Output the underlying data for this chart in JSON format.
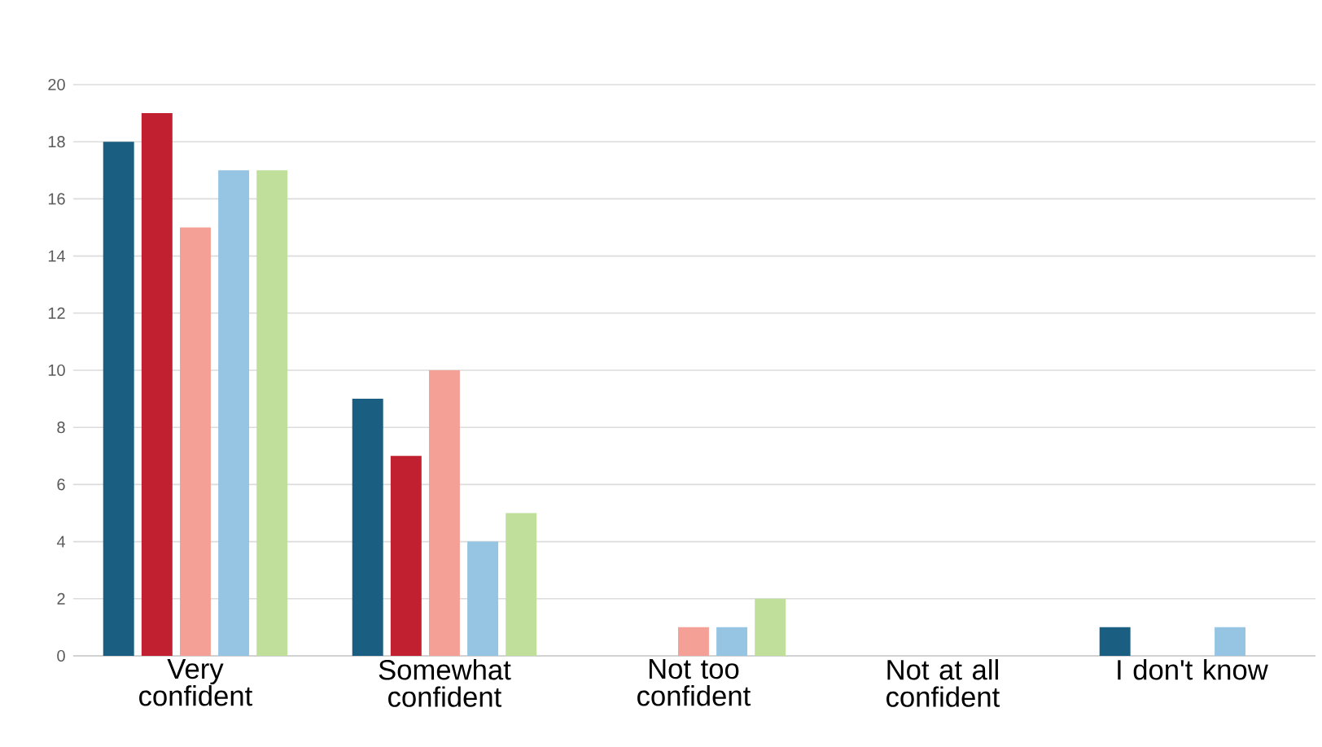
{
  "chart_data": {
    "type": "bar",
    "categories": [
      "Very confident",
      "Somewhat confident",
      "Not too confident",
      "Not at all confident",
      "I don't know"
    ],
    "series": [
      {
        "color": "#1a5e82",
        "values": [
          18,
          9,
          0,
          0,
          1
        ]
      },
      {
        "color": "#c0202f",
        "values": [
          19,
          7,
          0,
          0,
          0
        ]
      },
      {
        "color": "#f4a097",
        "values": [
          15,
          10,
          1,
          0,
          0
        ]
      },
      {
        "color": "#95c5e3",
        "values": [
          17,
          4,
          1,
          0,
          1
        ]
      },
      {
        "color": "#bfdf9b",
        "values": [
          17,
          5,
          2,
          0,
          0
        ]
      }
    ],
    "ylim": [
      0,
      20
    ],
    "yticks": [
      0,
      2,
      4,
      6,
      8,
      10,
      12,
      14,
      16,
      18,
      20
    ],
    "grid": "y"
  }
}
